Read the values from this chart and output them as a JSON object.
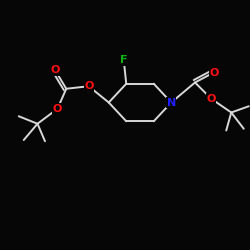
{
  "background_color": "#060606",
  "bond_color": "#d8d8d8",
  "atom_colors": {
    "N": "#2020ff",
    "O": "#ff1010",
    "F": "#10b010",
    "C": "#d8d8d8"
  },
  "bond_width": 1.4,
  "font_size": 8.0,
  "figsize": [
    2.5,
    2.5
  ],
  "dpi": 100,
  "xlim": [
    0,
    10
  ],
  "ylim": [
    0,
    10
  ]
}
